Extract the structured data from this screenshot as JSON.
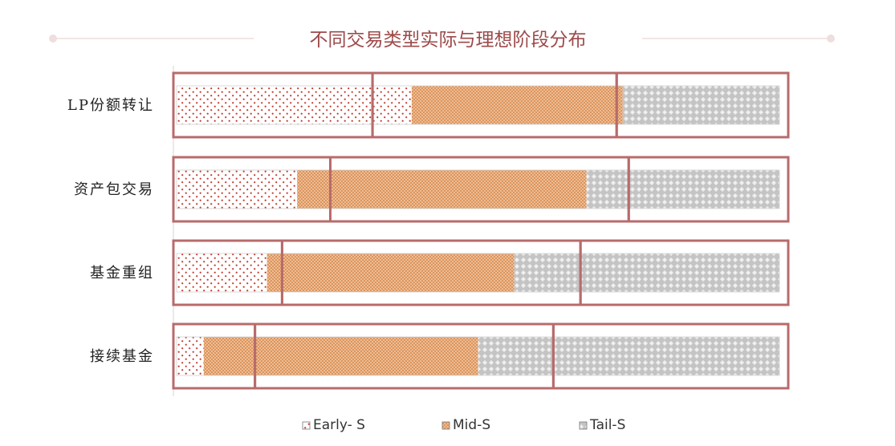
{
  "chart_data": {
    "type": "bar",
    "orientation": "horizontal",
    "stacked": true,
    "title": "不同交易类型实际与理想阶段分布",
    "categories": [
      "LP份额转让",
      "资产包交易",
      "基金重组",
      "接续基金"
    ],
    "series": [
      {
        "name": "Early- S",
        "values": [
          39,
          20,
          15,
          4.5
        ],
        "pattern": "dots",
        "color": "#c0392b"
      },
      {
        "name": "Mid-S",
        "values": [
          35,
          48,
          41,
          45.5
        ],
        "pattern": "crosshatch",
        "color": "#e3a274"
      },
      {
        "name": "Tail-S",
        "values": [
          26,
          32,
          44,
          50
        ],
        "pattern": "diamond",
        "color": "#b8b8b8"
      }
    ],
    "ideal_stage_boundaries": [
      [
        32.5,
        73
      ],
      [
        25.5,
        75
      ],
      [
        17.5,
        67
      ],
      [
        13,
        62.5
      ]
    ],
    "xlim": [
      0,
      100
    ],
    "legend_position": "bottom",
    "grid": false,
    "frame_color": "#b86b6b"
  }
}
